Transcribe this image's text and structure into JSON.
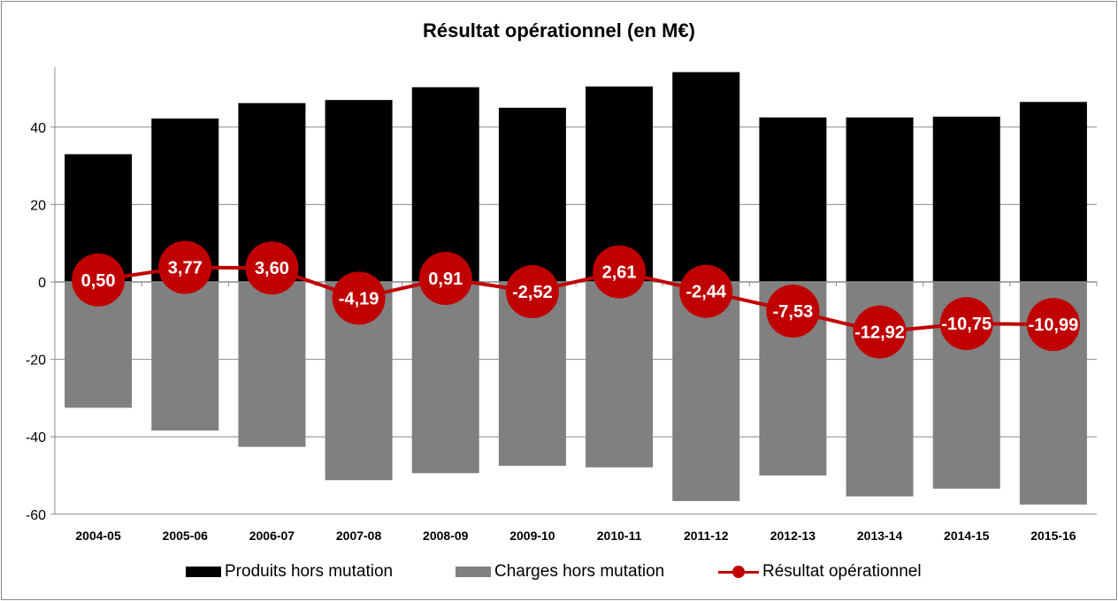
{
  "chart_data": {
    "type": "bar",
    "title": "Résultat opérationnel (en M€)",
    "categories": [
      "2004-05",
      "2005-06",
      "2006-07",
      "2007-08",
      "2008-09",
      "2009-10",
      "2010-11",
      "2011-12",
      "2012-13",
      "2013-14",
      "2014-15",
      "2015-16"
    ],
    "series": [
      {
        "name": "Produits hors mutation",
        "type": "bar",
        "color": "#000000",
        "values": [
          33.0,
          42.2,
          46.2,
          47.0,
          50.3,
          45.0,
          50.5,
          54.2,
          42.5,
          42.5,
          42.7,
          46.5
        ]
      },
      {
        "name": "Charges hors mutation",
        "type": "bar",
        "color": "#808080",
        "values": [
          -32.5,
          -38.4,
          -42.6,
          -51.2,
          -49.4,
          -47.5,
          -47.9,
          -56.6,
          -50.0,
          -55.4,
          -53.4,
          -57.5
        ]
      },
      {
        "name": "Résultat opérationnel",
        "type": "line",
        "color": "#c00000",
        "values": [
          0.5,
          3.77,
          3.6,
          -4.19,
          0.91,
          -2.52,
          2.61,
          -2.44,
          -7.53,
          -12.92,
          -10.75,
          -10.99
        ],
        "labels": [
          "0,50",
          "3,77",
          "3,60",
          "-4,19",
          "0,91",
          "-2,52",
          "2,61",
          "-2,44",
          "-7,53",
          "-12,92",
          "-10,75",
          "-10,99"
        ]
      }
    ],
    "ylim": [
      -60,
      60
    ],
    "yticks": [
      "-60",
      "-40",
      "-20",
      "0",
      "20",
      "40"
    ],
    "grid": true,
    "legend": "bottom",
    "xlabel": "",
    "ylabel": ""
  }
}
